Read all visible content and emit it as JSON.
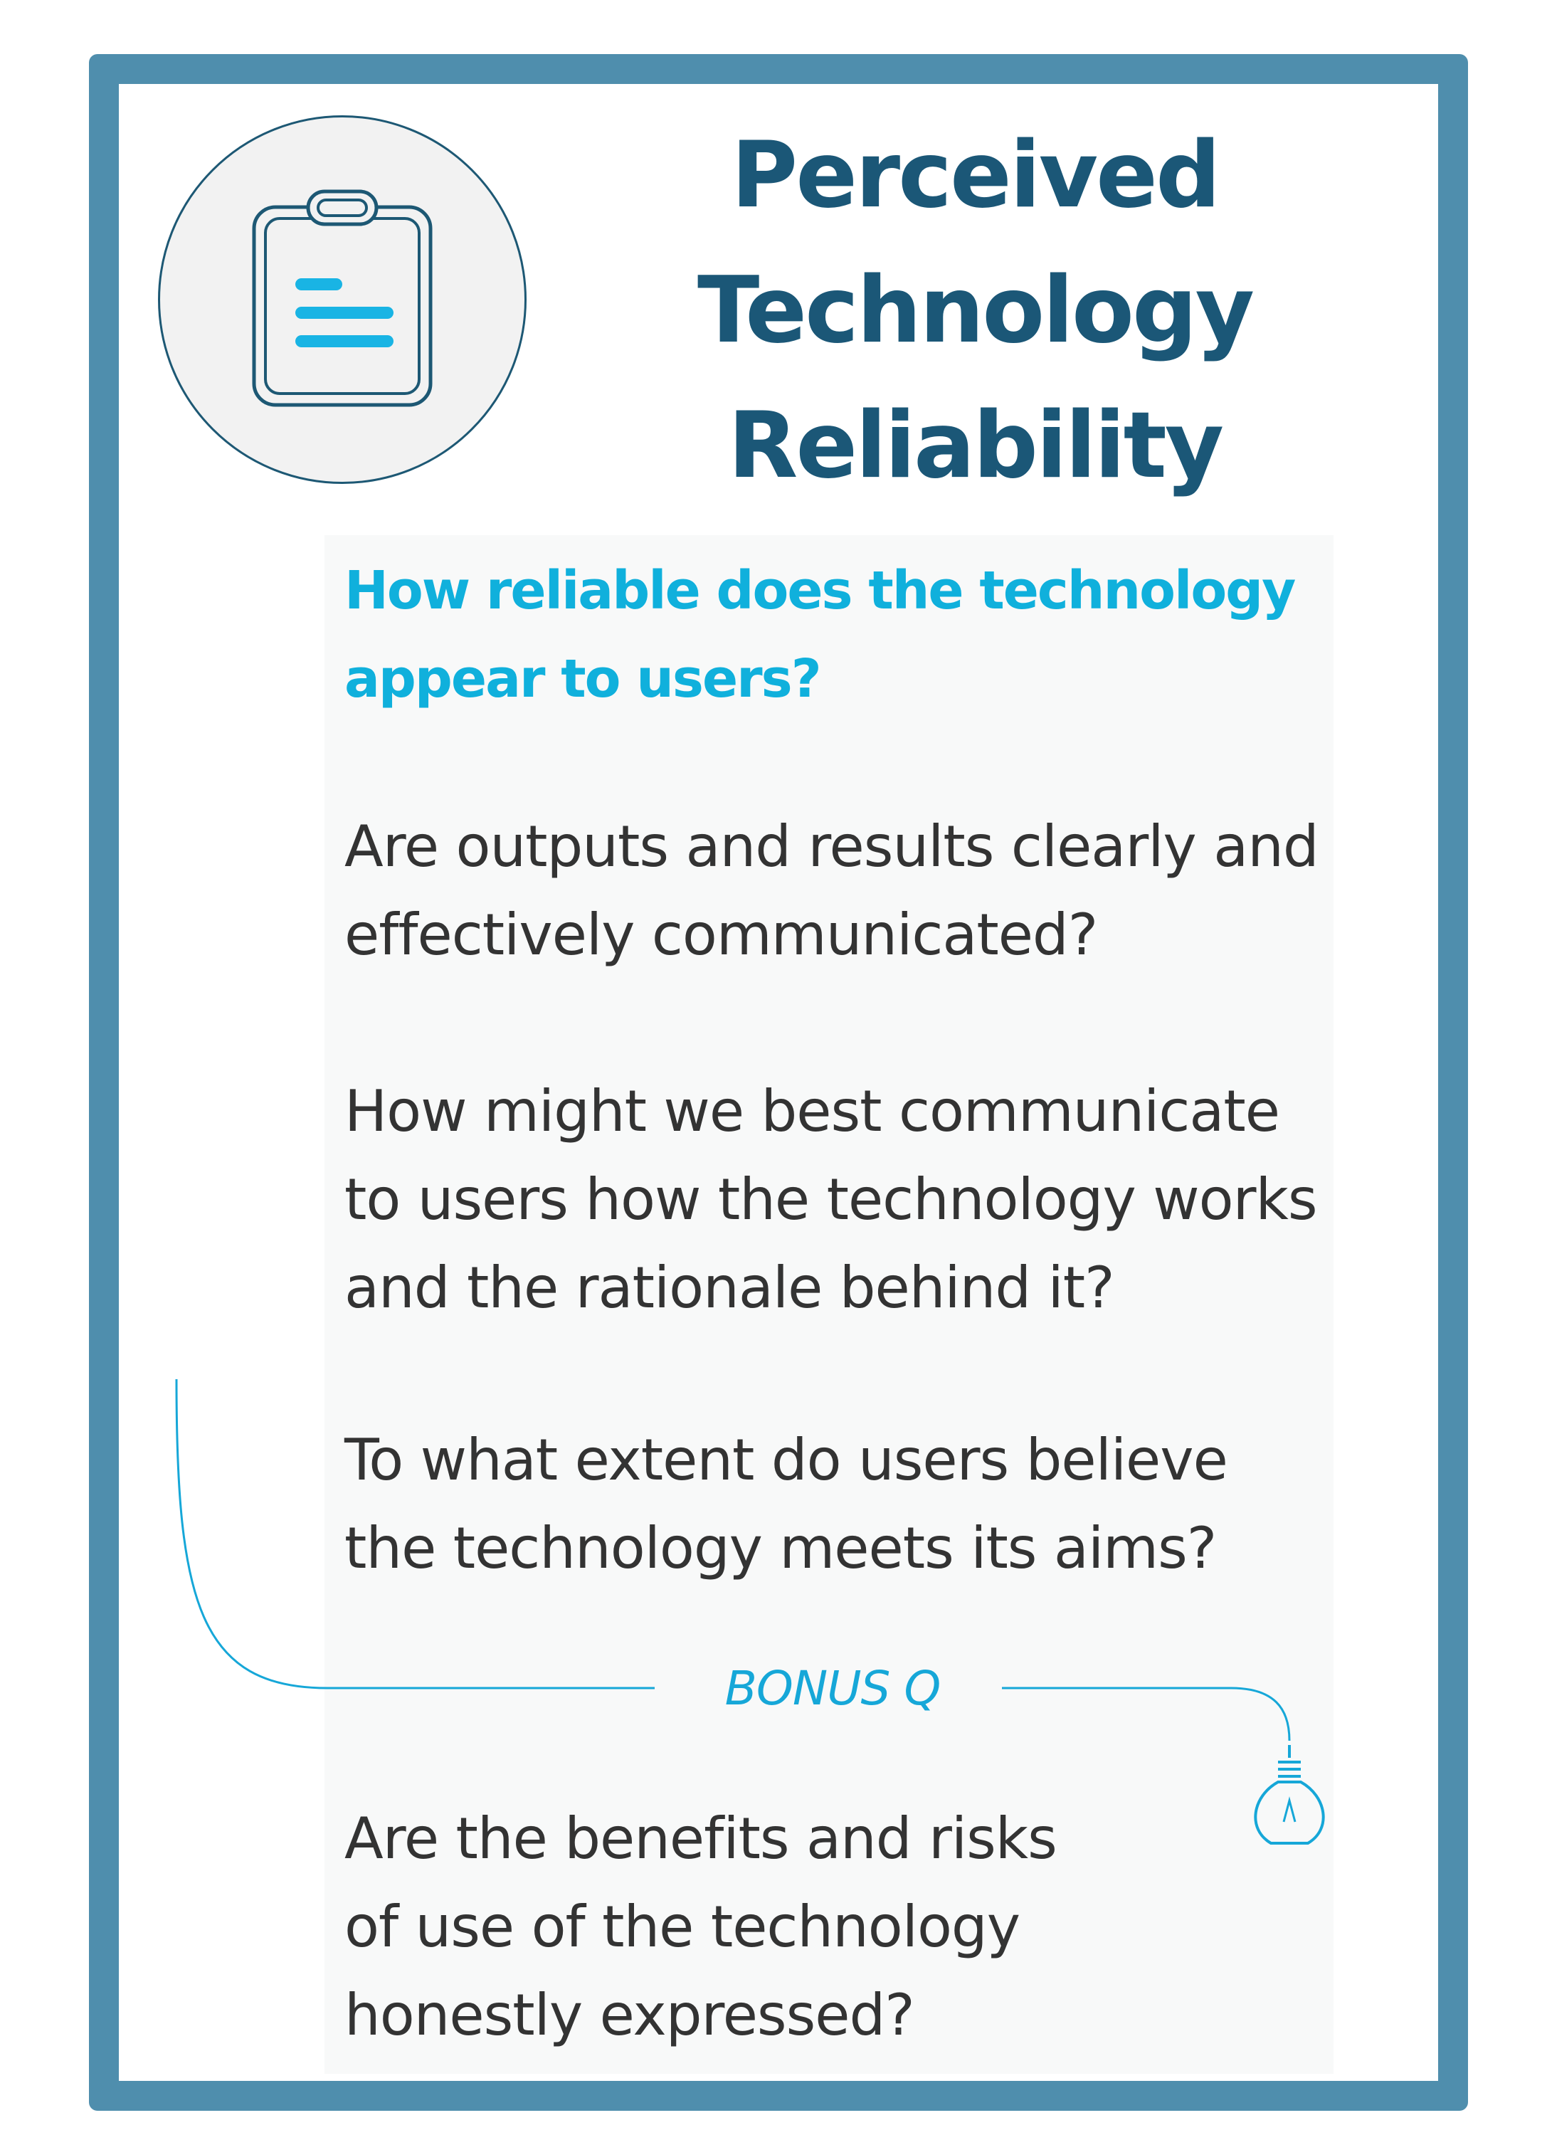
{
  "card": {
    "title_lines": [
      "Perceived",
      "Technology",
      "Reliability"
    ],
    "icon": "clipboard-icon",
    "lead_question_lines": [
      "How reliable does the technology",
      "appear to users?"
    ],
    "questions": [
      {
        "lines": [
          "Are outputs and results clearly and",
          "effectively communicated?"
        ]
      },
      {
        "lines": [
          "How might we best communicate",
          "to users how the technology works",
          "and the rationale behind it?"
        ]
      },
      {
        "lines": [
          "To what extent do users believe",
          "the technology meets its aims?"
        ]
      }
    ],
    "bonus_label": "BONUS Q",
    "bonus_icon": "lightbulb-icon",
    "bonus_question_lines": [
      "Are the benefits and risks",
      "of use of the technology",
      "honestly expressed?"
    ]
  },
  "colors": {
    "border": "#4f8ead",
    "title": "#1b5777",
    "accent": "#10b0dc",
    "body_text": "#333333",
    "panel": "#f8f9f9"
  }
}
